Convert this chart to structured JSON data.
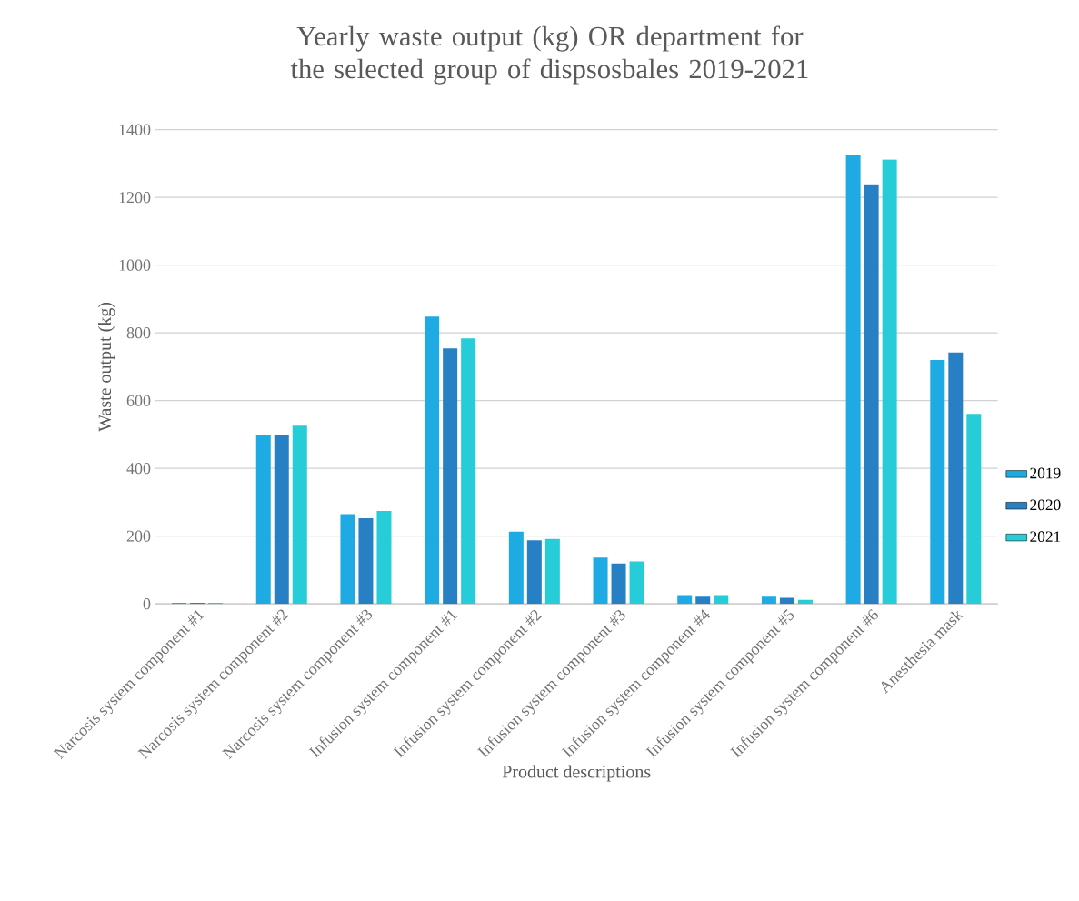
{
  "chart_data": {
    "type": "bar",
    "title": "Yearly waste output (kg) OR department for the selected group of dispsosbales 2019-2021",
    "xlabel": "Product descriptions",
    "ylabel": "Waste output (kg)",
    "categories": [
      "Narcosis system component #1",
      "Narcosis system component #2",
      "Narcosis system component #3",
      "Infusion system component #1",
      "Infusion system component #2",
      "Infusion system component #3",
      "Infusion system component #4",
      "Infusion system component #5",
      "Infusion system component #6",
      "Anesthesia mask"
    ],
    "series": [
      {
        "name": "2019",
        "color": "#1eaae2",
        "values": [
          3,
          500,
          265,
          848,
          213,
          137,
          26,
          21,
          1325,
          720
        ]
      },
      {
        "name": "2020",
        "color": "#2780c4",
        "values": [
          3,
          500,
          253,
          754,
          188,
          119,
          21,
          18,
          1239,
          742
        ]
      },
      {
        "name": "2021",
        "color": "#26ccd8",
        "values": [
          3,
          526,
          274,
          784,
          192,
          125,
          26,
          12,
          1312,
          561
        ]
      }
    ],
    "ylim": [
      0,
      1400
    ],
    "yticks": [
      0,
      200,
      400,
      600,
      800,
      1000,
      1200,
      1400
    ],
    "grid": "y",
    "legend": "right"
  }
}
